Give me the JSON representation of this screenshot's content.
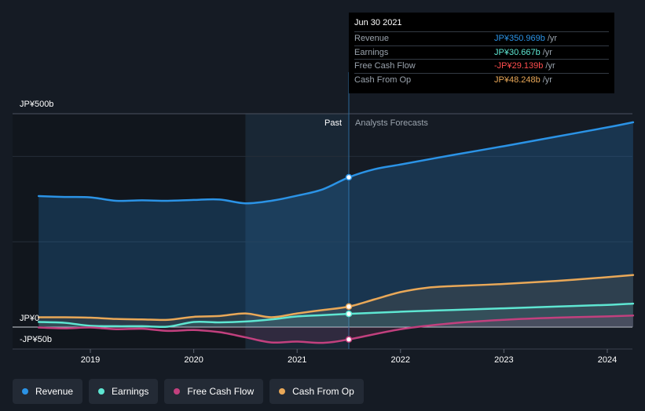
{
  "chart_data": {
    "type": "area",
    "currency": "JP¥",
    "y_axis": {
      "labels": [
        "JP¥500b",
        "JP¥0",
        "-JP¥50b"
      ],
      "ylim": [
        -55,
        500
      ]
    },
    "x_axis": {
      "tick_labels": [
        "2019",
        "2020",
        "2021",
        "2022",
        "2023",
        "2024"
      ],
      "tick_values": [
        2019,
        2020,
        2021,
        2022,
        2023,
        2024
      ],
      "xlim": [
        2018.25,
        2024.25
      ]
    },
    "regions": {
      "past_label": "Past",
      "forecast_label": "Analysts Forecasts",
      "divider_x": 2021.5,
      "shaded_past_from": 2020.5
    },
    "series": [
      {
        "name": "Revenue",
        "color": "#2b93e6",
        "x": [
          2018.5,
          2018.75,
          2019.0,
          2019.25,
          2019.5,
          2019.75,
          2020.0,
          2020.25,
          2020.5,
          2020.75,
          2021.0,
          2021.25,
          2021.5,
          2021.75,
          2022.0,
          2022.5,
          2023.0,
          2023.5,
          2024.0,
          2024.25
        ],
        "values": [
          307,
          305,
          304,
          296,
          297,
          296,
          298,
          299,
          290,
          296,
          308,
          323,
          351,
          370,
          381,
          403,
          424,
          446,
          468,
          480
        ]
      },
      {
        "name": "Earnings",
        "color": "#5ee6d2",
        "x": [
          2018.5,
          2018.75,
          2019.0,
          2019.25,
          2019.5,
          2019.75,
          2020.0,
          2020.25,
          2020.5,
          2020.75,
          2021.0,
          2021.25,
          2021.5,
          2022.0,
          2022.5,
          2023.0,
          2023.5,
          2024.0,
          2024.25
        ],
        "values": [
          12,
          10,
          3,
          2,
          2,
          1,
          12,
          11,
          13,
          18,
          25,
          28,
          31,
          36,
          40,
          44,
          48,
          52,
          55
        ]
      },
      {
        "name": "Free Cash Flow",
        "color": "#c2407e",
        "x": [
          2018.5,
          2018.75,
          2019.0,
          2019.25,
          2019.5,
          2019.75,
          2020.0,
          2020.25,
          2020.5,
          2020.75,
          2021.0,
          2021.25,
          2021.5,
          2022.0,
          2022.5,
          2023.0,
          2023.5,
          2024.0,
          2024.25
        ],
        "values": [
          -1,
          -3,
          -1,
          -5,
          -4,
          -9,
          -7,
          -12,
          -24,
          -36,
          -34,
          -37,
          -29,
          -5,
          9,
          17,
          22,
          25,
          27
        ]
      },
      {
        "name": "Cash From Op",
        "color": "#e9a858",
        "x": [
          2018.5,
          2018.75,
          2019.0,
          2019.25,
          2019.5,
          2019.75,
          2020.0,
          2020.25,
          2020.5,
          2020.75,
          2021.0,
          2021.25,
          2021.5,
          2021.75,
          2022.0,
          2022.25,
          2022.5,
          2023.0,
          2023.5,
          2024.0,
          2024.25
        ],
        "values": [
          23,
          23,
          22,
          19,
          18,
          17,
          24,
          26,
          32,
          23,
          32,
          40,
          48,
          65,
          82,
          92,
          96,
          101,
          108,
          117,
          122
        ]
      }
    ],
    "highlight": {
      "x": 2021.5
    }
  },
  "tooltip": {
    "date": "Jun 30 2021",
    "rows": [
      {
        "name": "Revenue",
        "value": "JP¥350.969b",
        "unit": "/yr",
        "color": "#2b93e6"
      },
      {
        "name": "Earnings",
        "value": "JP¥30.667b",
        "unit": "/yr",
        "color": "#5ee6d2"
      },
      {
        "name": "Free Cash Flow",
        "value": "-JP¥29.139b",
        "unit": "/yr",
        "color": "#ff4d4d"
      },
      {
        "name": "Cash From Op",
        "value": "JP¥48.248b",
        "unit": "/yr",
        "color": "#e9a858"
      }
    ]
  },
  "legend": [
    {
      "label": "Revenue",
      "color": "#2b93e6"
    },
    {
      "label": "Earnings",
      "color": "#5ee6d2"
    },
    {
      "label": "Free Cash Flow",
      "color": "#c2407e"
    },
    {
      "label": "Cash From Op",
      "color": "#e9a858"
    }
  ]
}
